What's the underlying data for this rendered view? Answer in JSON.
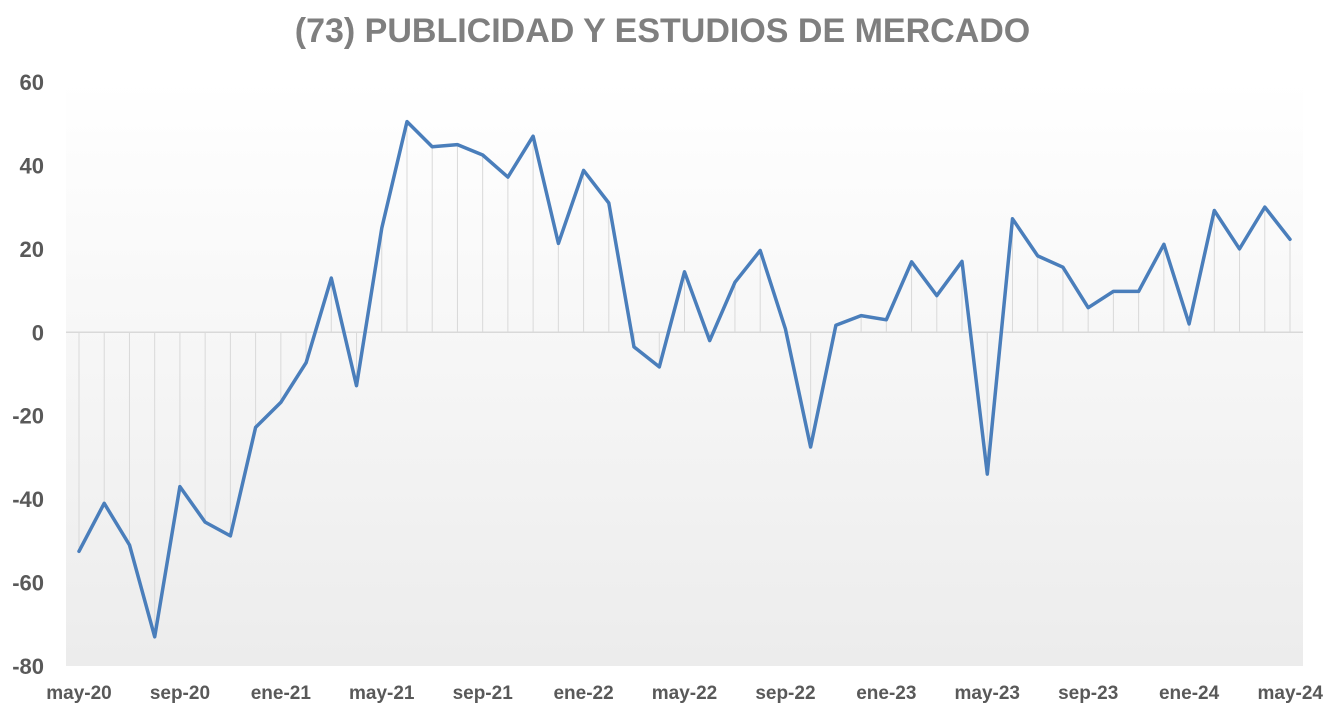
{
  "chart_data": {
    "type": "line",
    "title": "(73) PUBLICIDAD Y ESTUDIOS DE MERCADO",
    "xlabel": "",
    "ylabel": "",
    "ylim": [
      -80,
      60
    ],
    "yticks": [
      60,
      40,
      20,
      0,
      -20,
      -40,
      -60,
      -80
    ],
    "xtick_labels": [
      "may-20",
      "sep-20",
      "ene-21",
      "may-21",
      "sep-21",
      "ene-22",
      "may-22",
      "sep-22",
      "ene-23",
      "may-23",
      "sep-23",
      "ene-24",
      "may-24"
    ],
    "x": [
      "may-20",
      "jun-20",
      "jul-20",
      "ago-20",
      "sep-20",
      "oct-20",
      "nov-20",
      "dic-20",
      "ene-21",
      "feb-21",
      "mar-21",
      "abr-21",
      "may-21",
      "jun-21",
      "jul-21",
      "ago-21",
      "sep-21",
      "oct-21",
      "nov-21",
      "dic-21",
      "ene-22",
      "feb-22",
      "mar-22",
      "abr-22",
      "may-22",
      "jun-22",
      "jul-22",
      "ago-22",
      "sep-22",
      "oct-22",
      "nov-22",
      "dic-22",
      "ene-23",
      "feb-23",
      "mar-23",
      "abr-23",
      "may-23",
      "jun-23",
      "jul-23",
      "ago-23",
      "sep-23",
      "oct-23",
      "nov-23",
      "dic-23",
      "ene-24",
      "feb-24",
      "mar-24",
      "abr-24",
      "may-24"
    ],
    "series": [
      {
        "color": "#4a7ebb",
        "values": [
          -52.5,
          -41,
          -51,
          -73,
          -37,
          -45.5,
          -48.8,
          -22.8,
          -16.8,
          -7.3,
          13,
          -12.8,
          25,
          50.5,
          44.5,
          45,
          42.5,
          37.2,
          47,
          21.3,
          38.8,
          31,
          -3.5,
          -8.3,
          14.5,
          -2,
          12,
          19.6,
          0.8,
          -27.5,
          1.7,
          4,
          3,
          16.9,
          8.8,
          17,
          -34,
          27.2,
          18.3,
          15.6,
          5.9,
          9.8,
          9.8,
          21.1,
          2,
          29.2,
          20,
          30,
          22.3
        ]
      }
    ],
    "grid": false,
    "drop_lines": true,
    "legend": "none"
  }
}
